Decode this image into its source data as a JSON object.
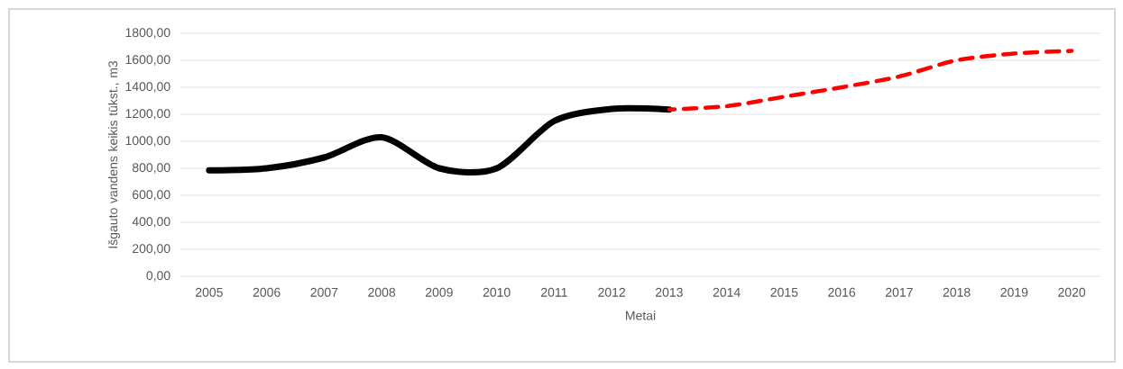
{
  "chart_data": {
    "type": "line",
    "categories": [
      "2005",
      "2006",
      "2007",
      "2008",
      "2009",
      "2010",
      "2011",
      "2012",
      "2013",
      "2014",
      "2015",
      "2016",
      "2017",
      "2018",
      "2019",
      "2020"
    ],
    "series": [
      {
        "color": "#000000",
        "line_style": "solid",
        "values": [
          785,
          800,
          880,
          1030,
          800,
          800,
          1150,
          1240,
          1235,
          null,
          null,
          null,
          null,
          null,
          null,
          null
        ]
      },
      {
        "color": "#ff0000",
        "line_style": "dashed",
        "values": [
          null,
          null,
          null,
          null,
          null,
          null,
          null,
          null,
          1235,
          1260,
          1330,
          1400,
          1480,
          1600,
          1650,
          1670
        ]
      }
    ],
    "xlabel": "Metai",
    "ylabel": "Išgauto vandens keikis tūkst., m3",
    "ylim": [
      0,
      1800
    ],
    "yticks": [
      {
        "value": 0,
        "label": "0,00"
      },
      {
        "value": 200,
        "label": "200,00"
      },
      {
        "value": 400,
        "label": "400,00"
      },
      {
        "value": 600,
        "label": "600,00"
      },
      {
        "value": 800,
        "label": "800,00"
      },
      {
        "value": 1000,
        "label": "1000,00"
      },
      {
        "value": 1200,
        "label": "1200,00"
      },
      {
        "value": 1400,
        "label": "1400,00"
      },
      {
        "value": 1600,
        "label": "1600,00"
      },
      {
        "value": 1800,
        "label": "1800,00"
      }
    ],
    "grid": "y"
  }
}
